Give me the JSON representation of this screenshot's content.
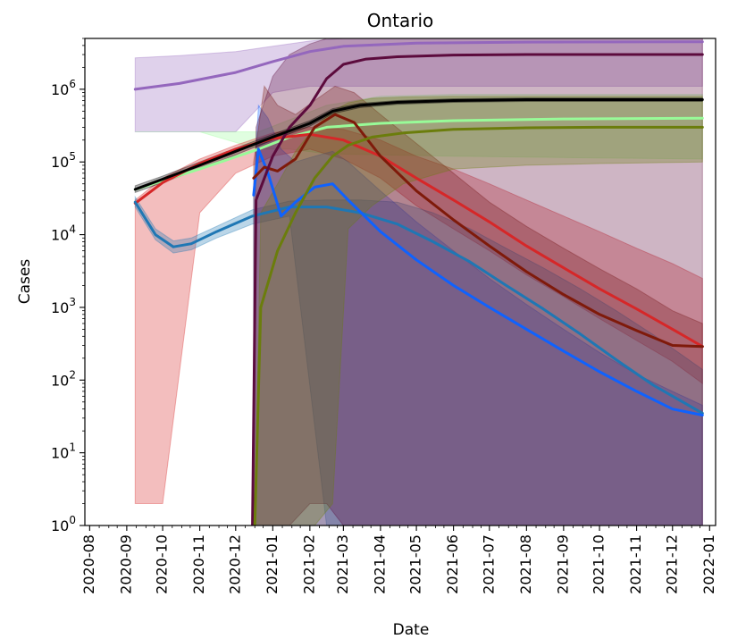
{
  "chart_data": {
    "type": "line",
    "title": "Ontario",
    "xlabel": "Date",
    "ylabel": "Cases",
    "yscale": "log",
    "ylim": [
      1,
      5000000
    ],
    "xlim": [
      "2020-07-28",
      "2022-01-06"
    ],
    "grid": false,
    "legend": "none",
    "x_ticks": [
      "2020-08",
      "2020-09",
      "2020-10",
      "2020-11",
      "2020-12",
      "2021-01",
      "2021-02",
      "2021-03",
      "2021-04",
      "2021-05",
      "2021-06",
      "2021-07",
      "2021-08",
      "2021-09",
      "2021-10",
      "2021-11",
      "2021-12",
      "2022-01"
    ],
    "y_ticks": [
      {
        "value": 1,
        "base": "10",
        "exp": "0"
      },
      {
        "value": 10,
        "base": "10",
        "exp": "1"
      },
      {
        "value": 100,
        "base": "10",
        "exp": "2"
      },
      {
        "value": 1000,
        "base": "10",
        "exp": "3"
      },
      {
        "value": 10000,
        "base": "10",
        "exp": "4"
      },
      {
        "value": 100000,
        "base": "10",
        "exp": "5"
      },
      {
        "value": 1000000,
        "base": "10",
        "exp": "6"
      }
    ],
    "series": [
      {
        "color": "#9467bd",
        "x": [
          "2020-09-08",
          "2020-10-15",
          "2020-12-01",
          "2021-01-01",
          "2021-02-01",
          "2021-03-01",
          "2021-05-01",
          "2021-08-01",
          "2021-12-26"
        ],
        "y": [
          1000000,
          1200000,
          1700000,
          2400000,
          3300000,
          3900000,
          4300000,
          4450000,
          4500000
        ],
        "band_upper": [
          2700000,
          2900000,
          3300000,
          3900000,
          4600000,
          5000000,
          5000000,
          5000000,
          5000000
        ],
        "band_lower": [
          260000,
          260000,
          260000,
          900000,
          1100000,
          1100000,
          1100000,
          1100000,
          1100000
        ]
      },
      {
        "color": "#98fb98",
        "x": [
          "2020-09-08",
          "2020-11-01",
          "2020-12-20",
          "2021-01-15",
          "2021-02-15",
          "2021-04-01",
          "2021-06-01",
          "2021-09-01",
          "2021-12-26"
        ],
        "y": [
          42000,
          80000,
          150000,
          220000,
          300000,
          340000,
          370000,
          390000,
          400000
        ],
        "band_upper": [
          260000,
          260000,
          260000,
          380000,
          600000,
          800000,
          850000,
          850000,
          850000
        ],
        "band_lower": [
          260000,
          260000,
          150000,
          150000,
          130000,
          125000,
          120000,
          115000,
          110000
        ]
      },
      {
        "color": "#d62728",
        "x": [
          "2020-09-08",
          "2020-10-01",
          "2020-11-01",
          "2020-12-01",
          "2021-01-01",
          "2021-02-01",
          "2021-03-01",
          "2021-04-01",
          "2021-05-01",
          "2021-06-01",
          "2021-07-01",
          "2021-08-01",
          "2021-09-01",
          "2021-10-01",
          "2021-11-01",
          "2021-12-01",
          "2021-12-26"
        ],
        "y": [
          27000,
          52000,
          95000,
          150000,
          210000,
          240000,
          200000,
          120000,
          60000,
          30000,
          15000,
          7000,
          3500,
          1800,
          950,
          500,
          290
        ],
        "band_upper": [
          30000,
          60000,
          110000,
          170000,
          250000,
          300000,
          280000,
          200000,
          120000,
          80000,
          50000,
          30000,
          18000,
          11000,
          6500,
          4000,
          2500
        ],
        "band_lower": [
          2,
          2,
          20000,
          70000,
          120000,
          150000,
          110000,
          60000,
          25000,
          12000,
          6000,
          2800,
          1400,
          700,
          350,
          180,
          90
        ]
      },
      {
        "color": "#1f77b4",
        "x": [
          "2020-09-08",
          "2020-09-25",
          "2020-10-10",
          "2020-10-25",
          "2020-11-15",
          "2020-12-15",
          "2021-01-15",
          "2021-02-15",
          "2021-03-15",
          "2021-04-15",
          "2021-05-15",
          "2021-06-15",
          "2021-07-15",
          "2021-08-15",
          "2021-09-15",
          "2021-10-15",
          "2021-11-15",
          "2021-12-26"
        ],
        "y": [
          28000,
          10000,
          6800,
          7500,
          11000,
          18000,
          24000,
          24000,
          20000,
          14000,
          8000,
          4200,
          2000,
          950,
          430,
          190,
          85,
          35
        ],
        "band_upper": [
          33000,
          12000,
          8200,
          9000,
          13000,
          22000,
          29000,
          30000,
          30000,
          28000,
          20000,
          12000,
          6500,
          3500,
          1800,
          900,
          420,
          140
        ],
        "band_lower": [
          24000,
          8500,
          5600,
          6200,
          9000,
          14000,
          18000,
          1,
          1,
          1,
          1,
          1,
          1,
          1,
          1,
          1,
          1,
          1
        ]
      },
      {
        "color": "#0f62fe",
        "x": [
          "2020-12-16",
          "2020-12-20",
          "2020-12-28",
          "2021-01-08",
          "2021-01-20",
          "2021-02-05",
          "2021-02-20",
          "2021-03-05",
          "2021-04-01",
          "2021-05-01",
          "2021-06-01",
          "2021-07-01",
          "2021-08-01",
          "2021-09-01",
          "2021-10-01",
          "2021-11-01",
          "2021-12-01",
          "2021-12-26"
        ],
        "y": [
          35000,
          150000,
          70000,
          18000,
          28000,
          45000,
          50000,
          30000,
          11000,
          4500,
          2000,
          1000,
          500,
          250,
          130,
          70,
          40,
          33
        ],
        "band_upper": [
          35000,
          600000,
          400000,
          150000,
          100000,
          120000,
          140000,
          100000,
          40000,
          15000,
          6000,
          2500,
          1100,
          500,
          240,
          120,
          70,
          45
        ],
        "band_lower": [
          1,
          1,
          1,
          1,
          1,
          1,
          1,
          1,
          1,
          1,
          1,
          1,
          1,
          1,
          1,
          1,
          1,
          1
        ]
      },
      {
        "color": "#7f1a0a",
        "x": [
          "2020-12-16",
          "2020-12-25",
          "2021-01-05",
          "2021-01-20",
          "2021-02-05",
          "2021-02-22",
          "2021-03-10",
          "2021-04-01",
          "2021-05-01",
          "2021-06-01",
          "2021-07-01",
          "2021-08-01",
          "2021-09-01",
          "2021-10-01",
          "2021-11-01",
          "2021-12-01",
          "2021-12-26"
        ],
        "y": [
          60000,
          85000,
          75000,
          110000,
          300000,
          450000,
          350000,
          120000,
          40000,
          16000,
          7000,
          3100,
          1500,
          800,
          480,
          300,
          290
        ],
        "band_upper": [
          100000,
          1100000,
          600000,
          450000,
          700000,
          1100000,
          900000,
          450000,
          180000,
          70000,
          28000,
          13000,
          6500,
          3400,
          1800,
          900,
          600
        ],
        "band_lower": [
          1,
          1,
          1,
          1,
          1,
          1,
          1,
          1,
          1,
          1,
          1,
          1,
          1,
          1,
          1,
          1,
          1
        ]
      },
      {
        "color": "#5c0b3d",
        "x": [
          "2020-12-15",
          "2020-12-18",
          "2021-01-01",
          "2021-01-15",
          "2021-02-01",
          "2021-02-15",
          "2021-03-01",
          "2021-03-20",
          "2021-04-15",
          "2021-06-01",
          "2021-08-01",
          "2021-10-01",
          "2021-12-26"
        ],
        "y": [
          1,
          30000,
          120000,
          300000,
          600000,
          1400000,
          2200000,
          2600000,
          2800000,
          2950000,
          3000000,
          3000000,
          3000000
        ],
        "band_upper": [
          1,
          300000,
          1500000,
          3000000,
          4200000,
          5000000,
          5000000,
          5000000,
          5000000,
          5000000,
          5000000,
          5000000,
          5000000
        ],
        "band_lower": [
          1,
          1,
          1,
          1,
          2,
          2,
          1,
          1,
          1,
          1,
          1,
          1,
          1
        ]
      },
      {
        "color": "#6b7d0c",
        "x": [
          "2020-12-17",
          "2020-12-22",
          "2021-01-05",
          "2021-01-20",
          "2021-02-05",
          "2021-02-20",
          "2021-03-05",
          "2021-03-25",
          "2021-04-20",
          "2021-06-01",
          "2021-08-01",
          "2021-10-01",
          "2021-12-26"
        ],
        "y": [
          1,
          1000,
          6000,
          20000,
          60000,
          120000,
          170000,
          220000,
          250000,
          280000,
          295000,
          300000,
          300000
        ],
        "band_upper": [
          1,
          20000,
          50000,
          140000,
          300000,
          500000,
          650000,
          750000,
          780000,
          800000,
          800000,
          800000,
          800000
        ],
        "band_lower": [
          1,
          1,
          1,
          1,
          1,
          2,
          12000,
          25000,
          50000,
          80000,
          90000,
          95000,
          100000
        ]
      },
      {
        "color": "#000000",
        "x": [
          "2020-09-08",
          "2020-10-01",
          "2020-11-01",
          "2020-12-01",
          "2021-01-01",
          "2021-02-01",
          "2021-02-20",
          "2021-03-15",
          "2021-04-15",
          "2021-06-01",
          "2021-08-01",
          "2021-10-01",
          "2021-12-26"
        ],
        "y": [
          42000,
          58000,
          90000,
          140000,
          220000,
          340000,
          500000,
          600000,
          660000,
          700000,
          720000,
          720000,
          720000
        ],
        "band_upper": [
          47000,
          64000,
          100000,
          155000,
          240000,
          370000,
          540000,
          640000,
          700000,
          740000,
          760000,
          760000,
          760000
        ],
        "band_lower": [
          38000,
          52000,
          80000,
          125000,
          200000,
          310000,
          460000,
          560000,
          620000,
          660000,
          680000,
          680000,
          680000
        ]
      }
    ]
  }
}
